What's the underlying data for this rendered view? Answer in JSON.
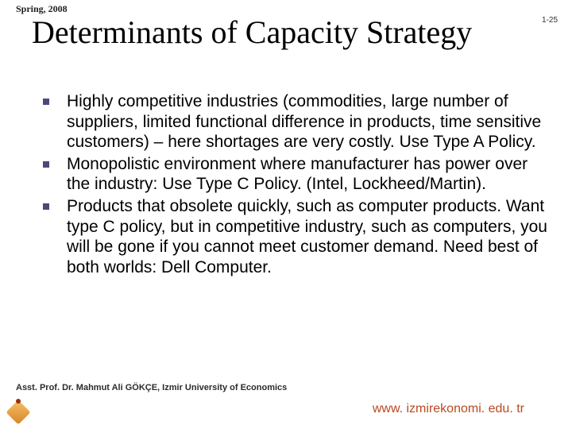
{
  "header": {
    "top_label": "Spring, 2008",
    "page_number": "1-25"
  },
  "title": "Determinants of Capacity Strategy",
  "body": {
    "bullet_color": "#4a4a7a",
    "font_size_pt": 21,
    "items": [
      "Highly competitive industries (commodities, large number of suppliers, limited functional difference in products, time sensitive customers) – here shortages are very costly. Use Type A Policy.",
      "Monopolistic environment where manufacturer has power over the industry: Use Type C Policy. (Intel, Lockheed/Martin).",
      "Products that obsolete quickly, such as computer products. Want type C policy, but in competitive industry, such as computers, you will be gone if you cannot meet customer demand. Need best of both worlds: Dell Computer."
    ]
  },
  "footer": {
    "credit": "Asst. Prof. Dr. Mahmut Ali GÖKÇE, Izmir University of Economics",
    "url": "www. izmirekonomi. edu. tr",
    "url_color": "#b84a20"
  },
  "colors": {
    "background": "#ffffff",
    "title_color": "#000000",
    "body_text": "#000000"
  }
}
